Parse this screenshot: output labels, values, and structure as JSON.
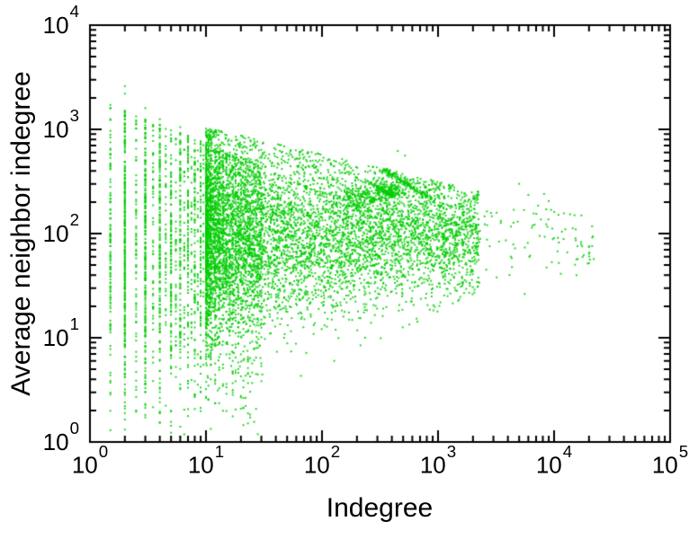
{
  "chart_data": {
    "type": "scatter",
    "title": "",
    "xlabel": "Indegree",
    "ylabel": "Average neighbor indegree",
    "x_scale": "log",
    "y_scale": "log",
    "xlim_exponents": [
      0,
      5
    ],
    "ylim_exponents": [
      0,
      4
    ],
    "x_tick_exponents": [
      0,
      1,
      2,
      3,
      4,
      5
    ],
    "y_tick_exponents": [
      0,
      1,
      2,
      3,
      4
    ],
    "tick_base": "10",
    "grid": false,
    "legend": "none",
    "frame_color": "#000000",
    "background_color": "#ffffff",
    "marker": {
      "shape": "square-dot",
      "color": "#00CC00",
      "size": 2,
      "alpha": 0.85
    },
    "seed": 1337,
    "note": "Dense log-log scatter (~10k points) of average neighbor indegree vs indegree; discrete vertical stripes at small integer/half-integer indegrees spreading y=1..~2000, merging into a cloud centered near y=100 that narrows toward x=20000; reproduced procedurally from point_generation.",
    "point_generation": {
      "integer_stripes": {
        "k_min": 1,
        "k_max": 30,
        "half_stripes_max": 10,
        "half_stripe_fraction": 0.3,
        "count_scale": 550,
        "count_falloff": 0.85,
        "y_center_exp": 1.85,
        "y_sigma_exp": 0.8,
        "top_exp_base": 3.32,
        "top_exp_falloff": 0.45
      },
      "clouds": [
        {
          "count": 6200,
          "e_min": 1.0,
          "e_span": 2.35,
          "e_power": 1.8,
          "y_center_base": 2.02,
          "y_center_slope": 0.02,
          "sigma_base": 0.5,
          "sigma_slope": 0.1,
          "sigma_min": 0.12,
          "floor_base": 0.15,
          "floor_slope": 0.55,
          "top_base": 3.02,
          "top_slope": 0.26
        },
        {
          "count": 130,
          "e_min": 3.0,
          "e_span": 1.36,
          "e_power": 1.2,
          "y_center_base": 2.25,
          "y_center_slope": 0.1,
          "sigma_base": 0.45,
          "sigma_slope": 0.09,
          "sigma_min": 0.13,
          "floor_base": 0.2,
          "floor_slope": 0.42,
          "top_base": 2.9,
          "top_slope": 0.22
        }
      ],
      "streaks": [
        {
          "x1": 2.52,
          "y1": 2.62,
          "x2": 2.93,
          "y2": 2.34,
          "count": 140,
          "jitter": 0.012
        },
        {
          "x1": 2.42,
          "y1": 2.48,
          "x2": 2.62,
          "y2": 2.36,
          "count": 70,
          "jitter": 0.01
        }
      ],
      "blobs": [
        {
          "cx": 2.6,
          "cy": 2.42,
          "sx": 0.07,
          "sy": 0.045,
          "count": 110
        },
        {
          "cx": 2.35,
          "cy": 2.33,
          "sx": 0.1,
          "sy": 0.06,
          "count": 140
        }
      ],
      "extra_points": [
        [
          1,
          2100
        ],
        [
          2,
          2600
        ],
        [
          2,
          2200
        ],
        [
          3,
          1600
        ],
        [
          4,
          1250
        ],
        [
          6,
          1050
        ],
        [
          450,
          620
        ],
        [
          520,
          560
        ],
        [
          5000,
          300
        ],
        [
          6000,
          235
        ],
        [
          8200,
          240
        ],
        [
          9000,
          205
        ],
        [
          7500,
          95
        ],
        [
          11000,
          82
        ],
        [
          13000,
          66
        ],
        [
          16000,
          57
        ],
        [
          20000,
          52
        ],
        [
          22000,
          57
        ],
        [
          15000,
          150
        ],
        [
          18000,
          62
        ],
        [
          12500,
          110
        ],
        [
          2600,
          45
        ],
        [
          3200,
          38
        ]
      ]
    }
  }
}
